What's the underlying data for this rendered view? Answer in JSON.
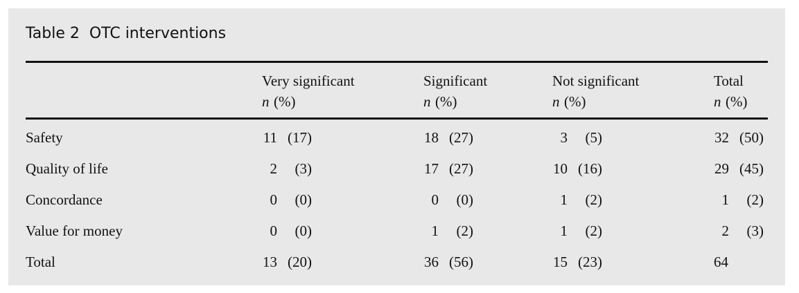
{
  "title": "Table 2  OTC interventions",
  "table": {
    "columns": [
      {
        "label": "",
        "sub": null
      },
      {
        "label": "Very significant",
        "sub": {
          "n": "n",
          "pct": "(%)"
        }
      },
      {
        "label": "Significant",
        "sub": {
          "n": "n",
          "pct": "(%)"
        }
      },
      {
        "label": "Not significant",
        "sub": {
          "n": "n",
          "pct": "(%)"
        }
      },
      {
        "label": "Total",
        "sub": {
          "n": "n",
          "pct": "(%)"
        }
      }
    ],
    "rows": [
      {
        "label": "Safety",
        "cells": [
          {
            "n": "11",
            "pct": "(17)"
          },
          {
            "n": "18",
            "pct": "(27)"
          },
          {
            "n": "3",
            "pct": "(5)"
          },
          {
            "n": "32",
            "pct": "(50)"
          }
        ]
      },
      {
        "label": "Quality of life",
        "cells": [
          {
            "n": "2",
            "pct": "(3)"
          },
          {
            "n": "17",
            "pct": "(27)"
          },
          {
            "n": "10",
            "pct": "(16)"
          },
          {
            "n": "29",
            "pct": "(45)"
          }
        ]
      },
      {
        "label": "Concordance",
        "cells": [
          {
            "n": "0",
            "pct": "(0)"
          },
          {
            "n": "0",
            "pct": "(0)"
          },
          {
            "n": "1",
            "pct": "(2)"
          },
          {
            "n": "1",
            "pct": "(2)"
          }
        ]
      },
      {
        "label": "Value for money",
        "cells": [
          {
            "n": "0",
            "pct": "(0)"
          },
          {
            "n": "1",
            "pct": "(2)"
          },
          {
            "n": "1",
            "pct": "(2)"
          },
          {
            "n": "2",
            "pct": "(3)"
          }
        ]
      },
      {
        "label": "Total",
        "cells": [
          {
            "n": "13",
            "pct": "(20)"
          },
          {
            "n": "36",
            "pct": "(56)"
          },
          {
            "n": "15",
            "pct": "(23)"
          },
          {
            "n": "64"
          }
        ]
      }
    ]
  }
}
